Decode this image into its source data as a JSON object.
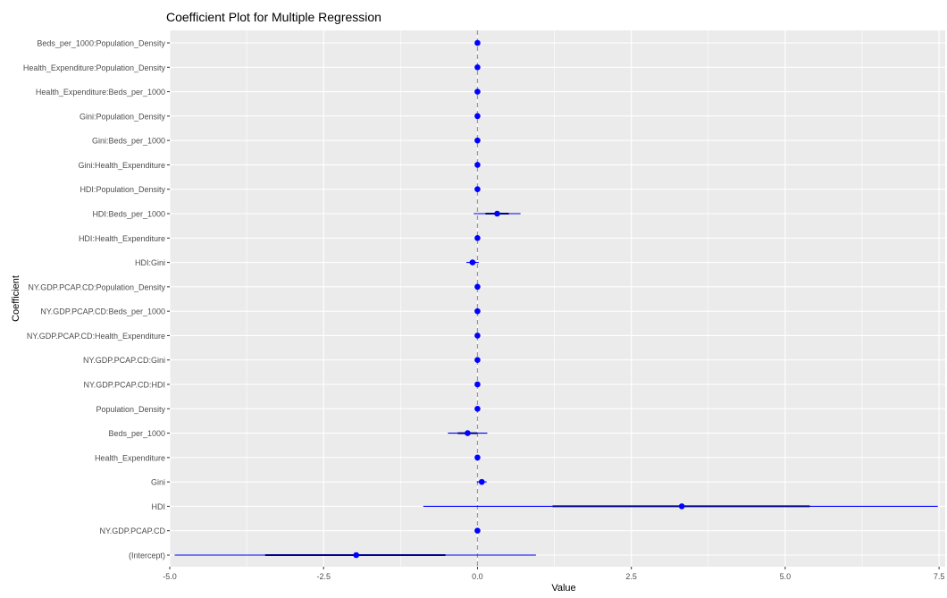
{
  "chart_data": {
    "type": "scatter",
    "subtype": "coefficient-plot",
    "title": "Coefficient Plot for Multiple Regression",
    "xlabel": "Value",
    "ylabel": "Coefficient",
    "xlim": [
      -5.0,
      7.6
    ],
    "x_ticks": [
      -5.0,
      -2.5,
      0.0,
      2.5,
      5.0,
      7.5
    ],
    "x_tick_labels": [
      "-5.0",
      "-2.5",
      "0.0",
      "2.5",
      "5.0",
      "7.5"
    ],
    "grid": true,
    "reference_line": 0,
    "colors": {
      "point": "#0000ff",
      "inner_interval": "#00008b",
      "outer_interval": "#0000ff",
      "panel": "#ebebeb",
      "grid": "#ffffff",
      "zero_line": "#999999"
    },
    "coefficients": [
      {
        "name": "(Intercept)",
        "value": -1.97,
        "inner": [
          -3.45,
          -0.52
        ],
        "outer": [
          -4.92,
          0.95
        ]
      },
      {
        "name": "NY.GDP.PCAP.CD",
        "value": 0.0,
        "inner": [
          0.0,
          0.0
        ],
        "outer": [
          0.0,
          0.0
        ]
      },
      {
        "name": "HDI",
        "value": 3.32,
        "inner": [
          1.22,
          5.4
        ],
        "outer": [
          -0.88,
          7.48
        ]
      },
      {
        "name": "Gini",
        "value": 0.07,
        "inner": [
          0.03,
          0.11
        ],
        "outer": [
          -0.01,
          0.15
        ]
      },
      {
        "name": "Health_Expenditure",
        "value": 0.0,
        "inner": [
          -0.01,
          0.01
        ],
        "outer": [
          -0.02,
          0.02
        ]
      },
      {
        "name": "Beds_per_1000",
        "value": -0.16,
        "inner": [
          -0.32,
          0.0
        ],
        "outer": [
          -0.48,
          0.16
        ]
      },
      {
        "name": "Population_Density",
        "value": 0.0,
        "inner": [
          0.0,
          0.0
        ],
        "outer": [
          0.0,
          0.0
        ]
      },
      {
        "name": "NY.GDP.PCAP.CD:HDI",
        "value": 0.0,
        "inner": [
          0.0,
          0.0
        ],
        "outer": [
          0.0,
          0.0
        ]
      },
      {
        "name": "NY.GDP.PCAP.CD:Gini",
        "value": 0.0,
        "inner": [
          0.0,
          0.0
        ],
        "outer": [
          0.0,
          0.0
        ]
      },
      {
        "name": "NY.GDP.PCAP.CD:Health_Expenditure",
        "value": 0.0,
        "inner": [
          0.0,
          0.0
        ],
        "outer": [
          0.0,
          0.0
        ]
      },
      {
        "name": "NY.GDP.PCAP.CD:Beds_per_1000",
        "value": 0.0,
        "inner": [
          0.0,
          0.0
        ],
        "outer": [
          0.0,
          0.0
        ]
      },
      {
        "name": "NY.GDP.PCAP.CD:Population_Density",
        "value": 0.0,
        "inner": [
          0.0,
          0.0
        ],
        "outer": [
          0.0,
          0.0
        ]
      },
      {
        "name": "HDI:Gini",
        "value": -0.08,
        "inner": [
          -0.13,
          -0.03
        ],
        "outer": [
          -0.18,
          0.02
        ]
      },
      {
        "name": "HDI:Health_Expenditure",
        "value": 0.0,
        "inner": [
          -0.01,
          0.01
        ],
        "outer": [
          -0.02,
          0.02
        ]
      },
      {
        "name": "HDI:Beds_per_1000",
        "value": 0.32,
        "inner": [
          0.13,
          0.51
        ],
        "outer": [
          -0.06,
          0.7
        ]
      },
      {
        "name": "HDI:Population_Density",
        "value": 0.0,
        "inner": [
          0.0,
          0.0
        ],
        "outer": [
          0.0,
          0.0
        ]
      },
      {
        "name": "Gini:Health_Expenditure",
        "value": 0.0,
        "inner": [
          0.0,
          0.0
        ],
        "outer": [
          0.0,
          0.0
        ]
      },
      {
        "name": "Gini:Beds_per_1000",
        "value": 0.0,
        "inner": [
          0.0,
          0.0
        ],
        "outer": [
          0.0,
          0.0
        ]
      },
      {
        "name": "Gini:Population_Density",
        "value": 0.0,
        "inner": [
          0.0,
          0.0
        ],
        "outer": [
          0.0,
          0.0
        ]
      },
      {
        "name": "Health_Expenditure:Beds_per_1000",
        "value": 0.0,
        "inner": [
          0.0,
          0.0
        ],
        "outer": [
          0.0,
          0.0
        ]
      },
      {
        "name": "Health_Expenditure:Population_Density",
        "value": 0.0,
        "inner": [
          0.0,
          0.0
        ],
        "outer": [
          0.0,
          0.0
        ]
      },
      {
        "name": "Beds_per_1000:Population_Density",
        "value": 0.0,
        "inner": [
          0.0,
          0.0
        ],
        "outer": [
          0.0,
          0.0
        ]
      }
    ]
  }
}
